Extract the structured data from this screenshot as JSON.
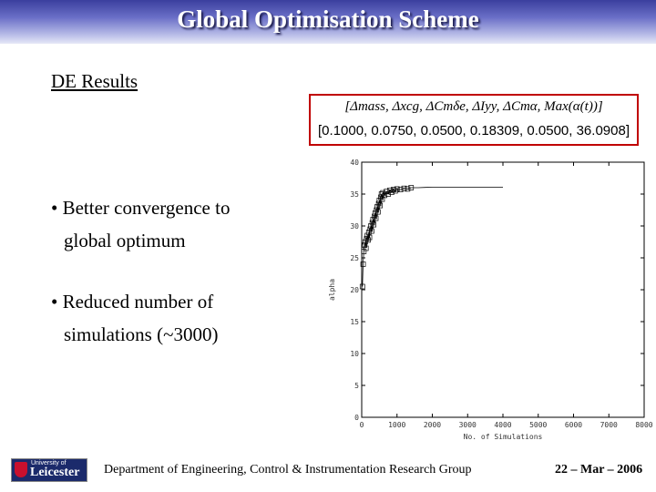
{
  "header": {
    "title": "Global Optimisation Scheme"
  },
  "main": {
    "section_heading": "DE Results",
    "bullets": [
      {
        "line1": "• Better convergence to",
        "line2": "global optimum"
      },
      {
        "line1": "• Reduced number of",
        "line2": "simulations (~3000)"
      }
    ],
    "equation": {
      "formula": "[Δmass, Δxcg, ΔCmδe, ΔIyy, ΔCmα, Max(α(t))]",
      "values": "[0.1000,  0.0750,  0.0500,  0.18309,  0.0500,  36.0908]"
    }
  },
  "chart_data": {
    "type": "scatter",
    "xlabel": "No. of Simulations",
    "ylabel": "alpha",
    "xlim": [
      0,
      8000
    ],
    "ylim": [
      0,
      40
    ],
    "xticks": [
      "0",
      "1000",
      "2000",
      "3000",
      "4000",
      "5000",
      "6000",
      "7000",
      "8000"
    ],
    "yticks": [
      "0",
      "5",
      "10",
      "15",
      "20",
      "25",
      "30",
      "35",
      "40"
    ],
    "grid": false,
    "series": [
      {
        "marker": "square",
        "points": [
          [
            20,
            20.5
          ],
          [
            40,
            24.0
          ],
          [
            60,
            26.0
          ],
          [
            80,
            27.0
          ],
          [
            100,
            27.5
          ],
          [
            120,
            26.5
          ],
          [
            140,
            28.0
          ],
          [
            160,
            28.5
          ],
          [
            180,
            27.8
          ],
          [
            200,
            29.0
          ],
          [
            220,
            28.2
          ],
          [
            240,
            29.5
          ],
          [
            260,
            30.0
          ],
          [
            280,
            29.2
          ],
          [
            300,
            30.5
          ],
          [
            320,
            31.0
          ],
          [
            340,
            30.2
          ],
          [
            360,
            31.5
          ],
          [
            380,
            32.0
          ],
          [
            400,
            31.2
          ],
          [
            420,
            32.5
          ],
          [
            440,
            33.0
          ],
          [
            460,
            32.2
          ],
          [
            480,
            33.5
          ],
          [
            500,
            34.0
          ],
          [
            520,
            33.2
          ],
          [
            540,
            34.5
          ],
          [
            560,
            35.0
          ],
          [
            580,
            34.2
          ],
          [
            600,
            35.2
          ],
          [
            650,
            34.8
          ],
          [
            700,
            35.4
          ],
          [
            750,
            35.0
          ],
          [
            800,
            35.6
          ],
          [
            850,
            35.3
          ],
          [
            900,
            35.7
          ],
          [
            950,
            35.5
          ],
          [
            1000,
            35.8
          ],
          [
            1100,
            35.7
          ],
          [
            1200,
            35.9
          ],
          [
            1300,
            35.8
          ],
          [
            1400,
            36.0
          ],
          [
            1600,
            36.0
          ],
          [
            1800,
            36.05
          ],
          [
            2000,
            36.08
          ],
          [
            2500,
            36.09
          ],
          [
            3000,
            36.09
          ],
          [
            4000,
            36.09
          ]
        ]
      }
    ]
  },
  "footer": {
    "logo_line1": "University of",
    "logo_line2": "Leicester",
    "department": "Department of Engineering, Control & Instrumentation Research Group",
    "date": "22 – Mar – 2006"
  },
  "colors": {
    "title_bar": "#3b3f9e",
    "eq_border": "#c00000",
    "logo_bg": "#1b2a6b"
  }
}
